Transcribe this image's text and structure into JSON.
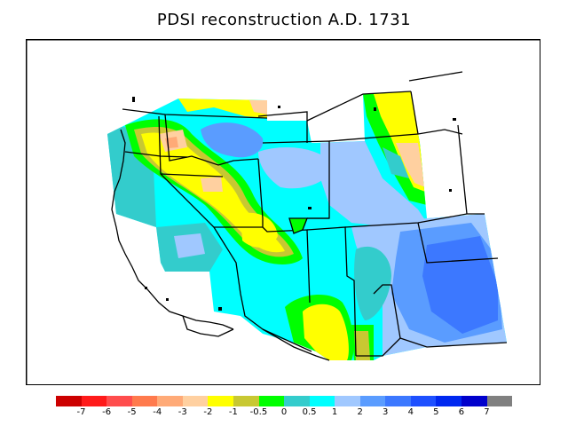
{
  "title": "PDSI reconstruction A.D. 1731",
  "legend": {
    "colors": [
      "#cc0000",
      "#ff1a1a",
      "#ff4d4d",
      "#ff7a4d",
      "#ffaa77",
      "#ffd0a0",
      "#ffff00",
      "#c8c832",
      "#00ff00",
      "#33cccc",
      "#00ffff",
      "#a0c8ff",
      "#5a9cff",
      "#3c78ff",
      "#1e50ff",
      "#0028f0",
      "#0000cc",
      "#808080"
    ],
    "labels": [
      "-7",
      "-6",
      "-5",
      "-4",
      "-3",
      "-2",
      "-1",
      "-0.5",
      "0",
      "0.5",
      "1",
      "2",
      "3",
      "4",
      "5",
      "6",
      "7"
    ]
  }
}
